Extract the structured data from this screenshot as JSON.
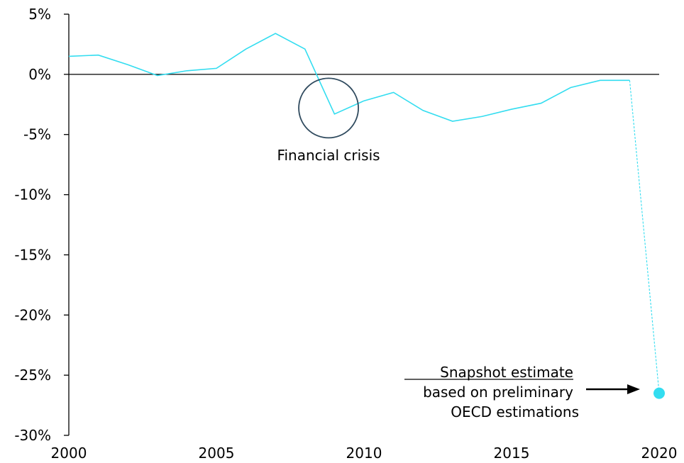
{
  "chart_data": {
    "type": "line",
    "title": "",
    "xlabel": "",
    "ylabel": "",
    "xlim": [
      2000,
      2020
    ],
    "ylim": [
      -30,
      5
    ],
    "x_ticks": [
      2000,
      2005,
      2010,
      2015,
      2020
    ],
    "y_ticks": [
      5,
      0,
      -5,
      -10,
      -15,
      -20,
      -25,
      -30
    ],
    "x_tick_labels": [
      "2000",
      "2005",
      "2010",
      "2015",
      "2020"
    ],
    "y_tick_labels": [
      "5%",
      "0%",
      "-5%",
      "-10%",
      "-15%",
      "-20%",
      "-25%",
      "-30%"
    ],
    "grid": false,
    "series": [
      {
        "x": [
          2000,
          2001,
          2002,
          2003,
          2004,
          2005,
          2006,
          2007,
          2008,
          2009,
          2010,
          2011,
          2012,
          2013,
          2014,
          2015,
          2016,
          2017,
          2018,
          2019
        ],
        "values": [
          1.5,
          1.6,
          0.8,
          -0.1,
          0.3,
          0.5,
          2.1,
          3.4,
          2.1,
          -3.3,
          -2.2,
          -1.5,
          -3.0,
          -3.9,
          -3.5,
          -2.9,
          -2.4,
          -1.1,
          -0.5,
          -0.5
        ],
        "color": "#33DDF0"
      }
    ],
    "estimate": {
      "x": [
        2019,
        2020
      ],
      "values": [
        -0.5,
        -26.5
      ],
      "style": "dashed",
      "color": "#33DDF0"
    },
    "annotations": {
      "crisis_label": "Financial crisis",
      "crisis_center": {
        "x": 2008.8,
        "y": -2.8
      },
      "estimate_label_line1": "Snapshot estimate",
      "estimate_label_line2": "based on preliminary",
      "estimate_label_line3": "OECD estimations"
    },
    "colors": {
      "line": "#33DDF0",
      "circle": "#2F4A5E",
      "axis": "#000000",
      "text": "#000000"
    }
  }
}
